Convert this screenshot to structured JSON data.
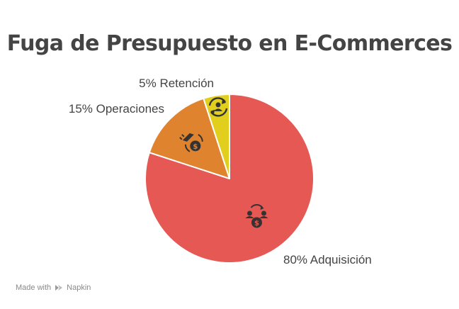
{
  "chart_data": {
    "type": "pie",
    "title": "Fuga de Presupuesto en E-Commerces",
    "slices": [
      {
        "label": "80% Adquisición",
        "value": 80,
        "color": "#E55854",
        "icon": "acquisition-money-icon"
      },
      {
        "label": "15% Operaciones",
        "value": 15,
        "color": "#E0832F",
        "icon": "operations-money-icon"
      },
      {
        "label": "5% Retención",
        "value": 5,
        "color": "#E2CE1C",
        "icon": "retention-user-icon"
      }
    ]
  },
  "footer": {
    "made_with": "Made with",
    "brand": "Napkin"
  }
}
